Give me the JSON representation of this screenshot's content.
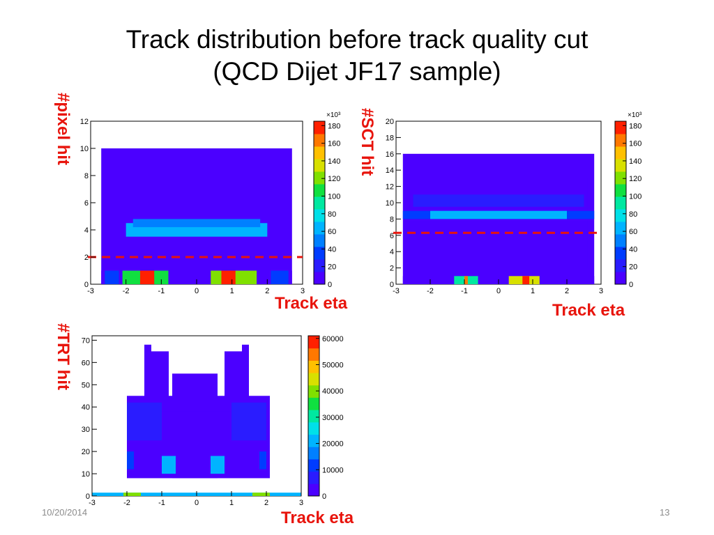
{
  "slide": {
    "title_line1": "Track distribution before track quality cut",
    "title_line2": "(QCD Dijet JF17 sample)",
    "date": "10/20/2014",
    "page_number": "13"
  },
  "colors": {
    "label": "#e8140c",
    "cut_line": "#e8140c"
  },
  "chart_data": [
    {
      "type": "heatmap",
      "ylabel": "#pixel hit",
      "xlabel": "Track eta",
      "xlim": [
        -3,
        3
      ],
      "ylim": [
        0,
        12
      ],
      "xticks": [
        -3,
        -2,
        -1,
        0,
        1,
        2,
        3
      ],
      "yticks": [
        0,
        2,
        4,
        6,
        8,
        10,
        12
      ],
      "colorbar": {
        "multiplier": "×10³",
        "ticks": [
          0,
          20,
          40,
          60,
          80,
          100,
          120,
          140,
          160,
          180
        ],
        "max": 185
      },
      "cut_value": 2,
      "regions": [
        {
          "x0": -2.7,
          "x1": 2.7,
          "y0": 0,
          "y1": 10,
          "z": 2
        },
        {
          "x0": -2.5,
          "x1": 2.5,
          "y0": 2,
          "y1": 8,
          "z": 5
        },
        {
          "x0": -2.3,
          "x1": 2.3,
          "y0": 3,
          "y1": 6,
          "z": 10
        },
        {
          "x0": -2.0,
          "x1": 2.0,
          "y0": 3.5,
          "y1": 4.5,
          "z": 70
        },
        {
          "x0": -1.8,
          "x1": 1.8,
          "y0": 4.2,
          "y1": 4.8,
          "z": 45
        },
        {
          "x0": -2.7,
          "x1": 2.7,
          "y0": 0,
          "y1": 1,
          "z": 8
        },
        {
          "x0": -2.1,
          "x1": -0.8,
          "y0": 0,
          "y1": 1,
          "z": 110
        },
        {
          "x0": -1.6,
          "x1": -1.2,
          "y0": 0,
          "y1": 1,
          "z": 175
        },
        {
          "x0": 0.4,
          "x1": 1.7,
          "y0": 0,
          "y1": 1,
          "z": 120
        },
        {
          "x0": 0.7,
          "x1": 1.1,
          "y0": 0,
          "y1": 1,
          "z": 180
        },
        {
          "x0": -2.6,
          "x1": -2.2,
          "y0": 0,
          "y1": 1,
          "z": 40
        },
        {
          "x0": 2.1,
          "x1": 2.6,
          "y0": 0,
          "y1": 1,
          "z": 35
        }
      ]
    },
    {
      "type": "heatmap",
      "ylabel": "#SCT hit",
      "xlabel": "Track eta",
      "xlim": [
        -3,
        3
      ],
      "ylim": [
        0,
        20
      ],
      "xticks": [
        -3,
        -2,
        -1,
        0,
        1,
        2,
        3
      ],
      "yticks": [
        0,
        2,
        4,
        6,
        8,
        10,
        12,
        14,
        16,
        18,
        20
      ],
      "colorbar": {
        "multiplier": "×10³",
        "ticks": [
          0,
          20,
          40,
          60,
          80,
          100,
          120,
          140,
          160,
          180
        ],
        "max": 185
      },
      "cut_value": 6.3,
      "regions": [
        {
          "x0": -2.8,
          "x1": 2.8,
          "y0": 0,
          "y1": 16,
          "z": 2
        },
        {
          "x0": -2.6,
          "x1": 2.6,
          "y0": 2,
          "y1": 13,
          "z": 4
        },
        {
          "x0": -2.8,
          "x1": 2.8,
          "y0": 8,
          "y1": 9,
          "z": 35
        },
        {
          "x0": -2.0,
          "x1": 2.0,
          "y0": 8,
          "y1": 9,
          "z": 60
        },
        {
          "x0": -2.5,
          "x1": 2.5,
          "y0": 9.5,
          "y1": 11,
          "z": 15
        },
        {
          "x0": -2.8,
          "x1": 2.8,
          "y0": 0,
          "y1": 1,
          "z": 10
        },
        {
          "x0": -1.3,
          "x1": -0.6,
          "y0": 0,
          "y1": 1,
          "z": 90
        },
        {
          "x0": 0.3,
          "x1": 1.2,
          "y0": 0,
          "y1": 1,
          "z": 130
        },
        {
          "x0": 0.7,
          "x1": 0.9,
          "y0": 0,
          "y1": 1,
          "z": 180
        },
        {
          "x0": -1.0,
          "x1": -0.9,
          "y0": 0,
          "y1": 1,
          "z": 160
        }
      ]
    },
    {
      "type": "heatmap",
      "ylabel": "#TRT hit",
      "xlabel": "Track eta",
      "xlim": [
        -3,
        3
      ],
      "ylim": [
        0,
        72
      ],
      "xticks": [
        -3,
        -2,
        -1,
        0,
        1,
        2,
        3
      ],
      "yticks": [
        0,
        10,
        20,
        30,
        40,
        50,
        60,
        70
      ],
      "colorbar": {
        "multiplier": "",
        "ticks": [
          0,
          10000,
          20000,
          30000,
          40000,
          50000,
          60000
        ],
        "max": 61000
      },
      "regions": [
        {
          "x0": -2.0,
          "x1": 2.1,
          "y0": 8,
          "y1": 45,
          "z": 2500
        },
        {
          "x0": -0.7,
          "x1": 0.6,
          "y0": 8,
          "y1": 55,
          "z": 2000
        },
        {
          "x0": -1.4,
          "x1": -0.8,
          "y0": 15,
          "y1": 65,
          "z": 1800
        },
        {
          "x0": 0.8,
          "x1": 1.4,
          "y0": 15,
          "y1": 65,
          "z": 1800
        },
        {
          "x0": -1.5,
          "x1": -1.3,
          "y0": 30,
          "y1": 68,
          "z": 1500
        },
        {
          "x0": 1.3,
          "x1": 1.5,
          "y0": 30,
          "y1": 68,
          "z": 1500
        },
        {
          "x0": -2.0,
          "x1": -1.0,
          "y0": 25,
          "y1": 42,
          "z": 6000
        },
        {
          "x0": 1.0,
          "x1": 2.0,
          "y0": 25,
          "y1": 42,
          "z": 6000
        },
        {
          "x0": -1.0,
          "x1": 1.0,
          "y0": 26,
          "y1": 38,
          "z": 4500
        },
        {
          "x0": -1.0,
          "x1": -0.6,
          "y0": 10,
          "y1": 18,
          "z": 20000
        },
        {
          "x0": 0.4,
          "x1": 0.8,
          "y0": 10,
          "y1": 18,
          "z": 20000
        },
        {
          "x0": -2.0,
          "x1": -1.8,
          "y0": 12,
          "y1": 20,
          "z": 12000
        },
        {
          "x0": 1.8,
          "x1": 2.0,
          "y0": 12,
          "y1": 20,
          "z": 12000
        },
        {
          "x0": -3.0,
          "x1": 3.0,
          "y0": 0,
          "y1": 1.5,
          "z": 20000
        },
        {
          "x0": -2.1,
          "x1": -1.6,
          "y0": 0,
          "y1": 1.5,
          "z": 42000
        },
        {
          "x0": 1.6,
          "x1": 2.1,
          "y0": 0,
          "y1": 1.5,
          "z": 42000
        }
      ]
    }
  ]
}
